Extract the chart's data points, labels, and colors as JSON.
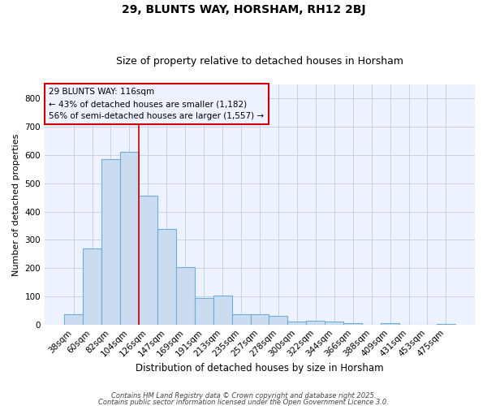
{
  "title": "29, BLUNTS WAY, HORSHAM, RH12 2BJ",
  "subtitle": "Size of property relative to detached houses in Horsham",
  "xlabel": "Distribution of detached houses by size in Horsham",
  "ylabel": "Number of detached properties",
  "categories": [
    "38sqm",
    "60sqm",
    "82sqm",
    "104sqm",
    "126sqm",
    "147sqm",
    "169sqm",
    "191sqm",
    "213sqm",
    "235sqm",
    "257sqm",
    "278sqm",
    "300sqm",
    "322sqm",
    "344sqm",
    "366sqm",
    "388sqm",
    "409sqm",
    "431sqm",
    "453sqm",
    "475sqm"
  ],
  "values": [
    37,
    268,
    585,
    610,
    457,
    338,
    202,
    93,
    102,
    37,
    37,
    32,
    12,
    13,
    10,
    5,
    0,
    5,
    0,
    0,
    3
  ],
  "bar_color": "#ccdcf0",
  "bar_edge_color": "#6baed6",
  "ylim": [
    0,
    850
  ],
  "yticks": [
    0,
    100,
    200,
    300,
    400,
    500,
    600,
    700,
    800
  ],
  "property_label": "29 BLUNTS WAY: 116sqm",
  "annotation_line1": "← 43% of detached houses are smaller (1,182)",
  "annotation_line2": "56% of semi-detached houses are larger (1,557) →",
  "vline_color": "#cc0000",
  "annotation_box_edgecolor": "#cc0000",
  "title_fontsize": 10,
  "subtitle_fontsize": 9,
  "xlabel_fontsize": 8.5,
  "ylabel_fontsize": 8,
  "tick_fontsize": 7.5,
  "annotation_fontsize": 7.5,
  "footer_line1": "Contains HM Land Registry data © Crown copyright and database right 2025.",
  "footer_line2": "Contains public sector information licensed under the Open Government Licence 3.0.",
  "background_color": "#ffffff",
  "plot_bg_color": "#eef2ff",
  "grid_color": "#c8cfe8"
}
